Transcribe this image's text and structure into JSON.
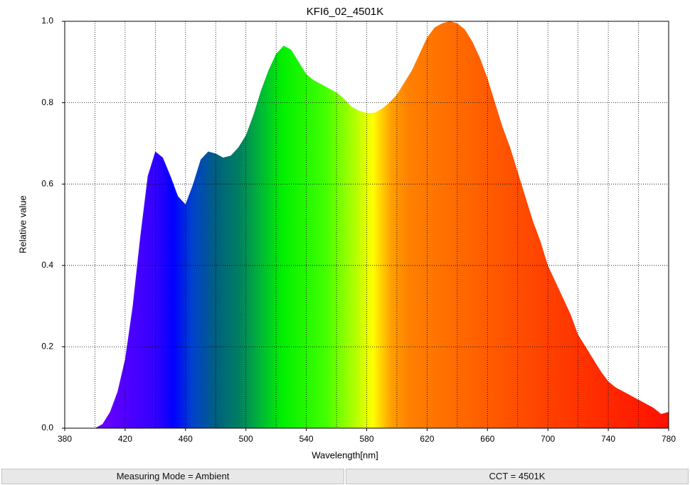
{
  "chart_data": {
    "type": "area",
    "title": "KFI6_02_4501K",
    "xlabel": "Wavelength[nm]",
    "ylabel": "Relative value",
    "x": [
      400,
      405,
      410,
      415,
      420,
      425,
      430,
      435,
      440,
      445,
      450,
      455,
      460,
      465,
      470,
      475,
      480,
      485,
      490,
      495,
      500,
      505,
      510,
      515,
      520,
      525,
      530,
      535,
      540,
      545,
      550,
      555,
      560,
      565,
      570,
      575,
      580,
      585,
      590,
      595,
      600,
      605,
      610,
      615,
      620,
      625,
      630,
      635,
      640,
      645,
      650,
      655,
      660,
      665,
      670,
      675,
      680,
      685,
      690,
      695,
      700,
      705,
      710,
      715,
      720,
      725,
      730,
      735,
      740,
      745,
      750,
      755,
      760,
      765,
      770,
      775,
      780
    ],
    "values": [
      0,
      0.01,
      0.04,
      0.09,
      0.17,
      0.3,
      0.47,
      0.62,
      0.68,
      0.665,
      0.62,
      0.57,
      0.55,
      0.6,
      0.66,
      0.68,
      0.675,
      0.665,
      0.67,
      0.69,
      0.72,
      0.77,
      0.83,
      0.88,
      0.92,
      0.94,
      0.93,
      0.9,
      0.87,
      0.855,
      0.845,
      0.835,
      0.825,
      0.81,
      0.79,
      0.78,
      0.775,
      0.775,
      0.785,
      0.8,
      0.82,
      0.85,
      0.88,
      0.92,
      0.96,
      0.985,
      0.995,
      1.0,
      0.995,
      0.98,
      0.95,
      0.91,
      0.86,
      0.8,
      0.74,
      0.69,
      0.63,
      0.57,
      0.51,
      0.46,
      0.4,
      0.36,
      0.32,
      0.28,
      0.23,
      0.2,
      0.17,
      0.14,
      0.115,
      0.1,
      0.09,
      0.08,
      0.07,
      0.06,
      0.05,
      0.035,
      0.04
    ],
    "xlim": [
      380,
      780
    ],
    "xticks": [
      380,
      420,
      460,
      500,
      540,
      580,
      620,
      660,
      700,
      740,
      780
    ],
    "ylim": [
      0,
      1.0
    ],
    "yticks": [
      {
        "value": 0,
        "label": "0.0"
      },
      0.2,
      0.4,
      0.6,
      0.8,
      {
        "value": 1.0,
        "label": "1.0"
      }
    ],
    "grid": true
  },
  "status": {
    "left": "Measuring Mode = Ambient",
    "right": "CCT = 4501K"
  }
}
